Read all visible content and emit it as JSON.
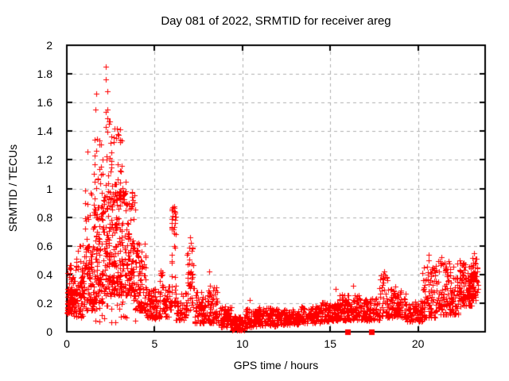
{
  "chart_data": {
    "type": "scatter",
    "title": "Day 081 of 2022, SRMTID for receiver areg",
    "xlabel": "GPS time / hours",
    "ylabel": "SRMTID / TECUs",
    "xlim": [
      0,
      23.82
    ],
    "ylim": [
      0,
      2
    ],
    "xticks": [
      0,
      5,
      10,
      15,
      20
    ],
    "yticks": [
      0,
      0.2,
      0.4,
      0.6,
      0.8,
      1,
      1.2,
      1.4,
      1.6,
      1.8,
      2
    ],
    "ytick_labels": [
      "0",
      "0.2",
      "0.4",
      "0.6",
      "0.8",
      "1",
      "1.2",
      "1.4",
      "1.6",
      "1.8",
      "2"
    ],
    "grid": true,
    "legend": "none",
    "colors": {
      "marker": "#ff0000",
      "grid": "#b0b0b0",
      "axis": "#000000",
      "background": "#ffffff"
    },
    "seed": 7,
    "series": [
      {
        "name": "srmtid",
        "marker": "plus",
        "bands_format": [
          "x_start",
          "x_end",
          "count",
          "y_min",
          "y_max",
          "low_bias"
        ],
        "bands": [
          [
            0.0,
            0.35,
            85,
            0.13,
            0.3,
            1.5
          ],
          [
            0.0,
            0.4,
            14,
            0.28,
            0.47,
            1.0
          ],
          [
            0.35,
            0.9,
            75,
            0.1,
            0.36,
            1.3
          ],
          [
            0.5,
            1.0,
            22,
            0.3,
            0.62,
            1.2
          ],
          [
            0.9,
            1.5,
            85,
            0.15,
            0.62,
            1.5
          ],
          [
            1.0,
            1.5,
            16,
            0.55,
            1.0,
            1.3
          ],
          [
            1.5,
            2.1,
            105,
            0.2,
            0.92,
            1.6
          ],
          [
            1.5,
            2.1,
            26,
            0.8,
            1.35,
            1.4
          ],
          [
            2.1,
            2.7,
            105,
            0.25,
            1.0,
            1.5
          ],
          [
            2.1,
            2.7,
            30,
            0.9,
            1.55,
            1.5
          ],
          [
            2.7,
            3.3,
            105,
            0.25,
            1.0,
            1.4
          ],
          [
            2.7,
            3.3,
            26,
            0.95,
            1.42,
            1.6
          ],
          [
            3.3,
            3.9,
            95,
            0.25,
            0.9,
            1.5
          ],
          [
            3.3,
            3.9,
            10,
            0.85,
            1.05,
            1.2
          ],
          [
            1.5,
            4.2,
            22,
            0.06,
            0.24,
            1.0
          ],
          [
            3.9,
            4.5,
            85,
            0.15,
            0.62,
            1.5
          ],
          [
            4.5,
            5.4,
            95,
            0.09,
            0.3,
            1.4
          ],
          [
            5.3,
            5.45,
            9,
            0.25,
            0.45,
            1.0
          ],
          [
            5.45,
            5.95,
            50,
            0.1,
            0.33,
            1.3
          ],
          [
            5.95,
            6.2,
            38,
            0.18,
            0.88,
            1.2
          ],
          [
            6.2,
            6.85,
            52,
            0.08,
            0.28,
            1.3
          ],
          [
            6.85,
            7.25,
            42,
            0.15,
            0.62,
            1.2
          ],
          [
            7.25,
            8.0,
            75,
            0.06,
            0.28,
            1.4
          ],
          [
            8.0,
            8.6,
            68,
            0.06,
            0.33,
            1.5
          ],
          [
            8.6,
            9.4,
            82,
            0.03,
            0.18,
            1.2
          ],
          [
            9.4,
            10.15,
            82,
            0.01,
            0.11,
            1.1
          ],
          [
            10.15,
            10.8,
            68,
            0.03,
            0.16,
            1.2
          ],
          [
            10.8,
            12.0,
            125,
            0.04,
            0.17,
            1.2
          ],
          [
            12.0,
            13.2,
            125,
            0.05,
            0.16,
            1.1
          ],
          [
            13.2,
            14.4,
            125,
            0.06,
            0.18,
            1.1
          ],
          [
            14.4,
            15.5,
            115,
            0.07,
            0.21,
            1.2
          ],
          [
            15.5,
            16.6,
            115,
            0.08,
            0.26,
            1.4
          ],
          [
            16.6,
            17.8,
            115,
            0.08,
            0.24,
            1.3
          ],
          [
            17.8,
            18.25,
            42,
            0.1,
            0.42,
            1.3
          ],
          [
            18.25,
            19.3,
            105,
            0.1,
            0.32,
            1.5
          ],
          [
            19.3,
            20.25,
            90,
            0.07,
            0.22,
            1.3
          ],
          [
            20.25,
            21.0,
            82,
            0.1,
            0.46,
            1.7
          ],
          [
            21.0,
            22.3,
            135,
            0.12,
            0.5,
            1.7
          ],
          [
            22.3,
            23.05,
            105,
            0.18,
            0.5,
            1.4
          ],
          [
            23.05,
            23.4,
            58,
            0.22,
            0.52,
            1.2
          ]
        ],
        "peaks": [
          [
            2.22,
            1.85
          ],
          [
            2.22,
            1.76
          ],
          [
            2.3,
            1.68
          ],
          [
            1.67,
            1.66
          ],
          [
            1.62,
            1.55
          ],
          [
            2.33,
            1.55
          ],
          [
            2.3,
            1.49
          ],
          [
            2.42,
            1.45
          ],
          [
            2.86,
            1.42
          ],
          [
            2.92,
            1.38
          ],
          [
            2.8,
            1.35
          ],
          [
            1.2,
            1.26
          ],
          [
            2.05,
            1.2
          ],
          [
            3.1,
            1.12
          ],
          [
            3.72,
            0.97
          ],
          [
            3.78,
            0.92
          ],
          [
            6.02,
            0.87
          ],
          [
            6.04,
            0.81
          ],
          [
            6.0,
            0.76
          ],
          [
            7.02,
            0.66
          ],
          [
            7.06,
            0.62
          ],
          [
            8.1,
            0.42
          ],
          [
            10.42,
            0.22
          ],
          [
            15.3,
            0.3
          ],
          [
            16.3,
            0.32
          ],
          [
            18.05,
            0.42
          ],
          [
            20.6,
            0.54
          ],
          [
            20.62,
            0.5
          ],
          [
            21.35,
            0.52
          ],
          [
            23.2,
            0.55
          ]
        ]
      },
      {
        "name": "flags",
        "marker": "square",
        "points": [
          [
            16.0,
            0
          ],
          [
            17.35,
            0
          ]
        ]
      }
    ]
  }
}
